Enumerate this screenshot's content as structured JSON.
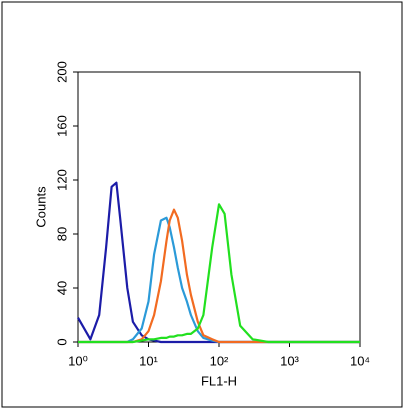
{
  "chart_data": {
    "type": "line",
    "x_label": "FL1-H",
    "y_label": "Counts",
    "xscale": "log",
    "xlim": [
      1,
      10000
    ],
    "ylim": [
      0,
      200
    ],
    "xticks": [
      {
        "value": 1,
        "label": "10⁰"
      },
      {
        "value": 10,
        "label": "10¹"
      },
      {
        "value": 100,
        "label": "10²"
      },
      {
        "value": 1000,
        "label": "10³"
      },
      {
        "value": 10000,
        "label": "10⁴"
      }
    ],
    "yticks": [
      0,
      40,
      80,
      120,
      160,
      200
    ],
    "x": [
      1,
      1.5,
      2,
      2.5,
      3,
      3.5,
      4,
      5,
      6,
      8,
      10,
      12,
      15,
      18,
      20,
      23,
      26,
      30,
      35,
      40,
      50,
      60,
      80,
      100,
      120,
      150,
      200,
      300,
      500,
      1000,
      10000
    ],
    "series": [
      {
        "color": "#1c1ca8",
        "values": [
          18,
          2,
          20,
          70,
          115,
          118,
          90,
          40,
          15,
          5,
          2,
          1,
          0,
          0,
          0,
          0,
          0,
          0,
          0,
          0,
          0,
          0,
          0,
          0,
          0,
          0,
          0,
          0,
          0,
          0,
          0
        ]
      },
      {
        "color": "#2b9ad8",
        "values": [
          0,
          0,
          0,
          0,
          0,
          0,
          0,
          0,
          2,
          10,
          30,
          65,
          90,
          92,
          85,
          70,
          55,
          40,
          30,
          20,
          8,
          3,
          1,
          0,
          0,
          0,
          0,
          0,
          0,
          0,
          0
        ]
      },
      {
        "color": "#f26b21",
        "values": [
          0,
          0,
          0,
          0,
          0,
          0,
          0,
          0,
          0,
          2,
          8,
          20,
          45,
          75,
          90,
          98,
          92,
          75,
          50,
          35,
          15,
          5,
          2,
          0,
          0,
          0,
          0,
          0,
          0,
          0,
          0
        ]
      },
      {
        "color": "#22e01f",
        "values": [
          0,
          0,
          0,
          0,
          0,
          0,
          0,
          0,
          0,
          1,
          2,
          2,
          3,
          3,
          4,
          4,
          5,
          5,
          6,
          6,
          10,
          20,
          70,
          102,
          95,
          50,
          12,
          2,
          0,
          0,
          0
        ]
      }
    ]
  }
}
